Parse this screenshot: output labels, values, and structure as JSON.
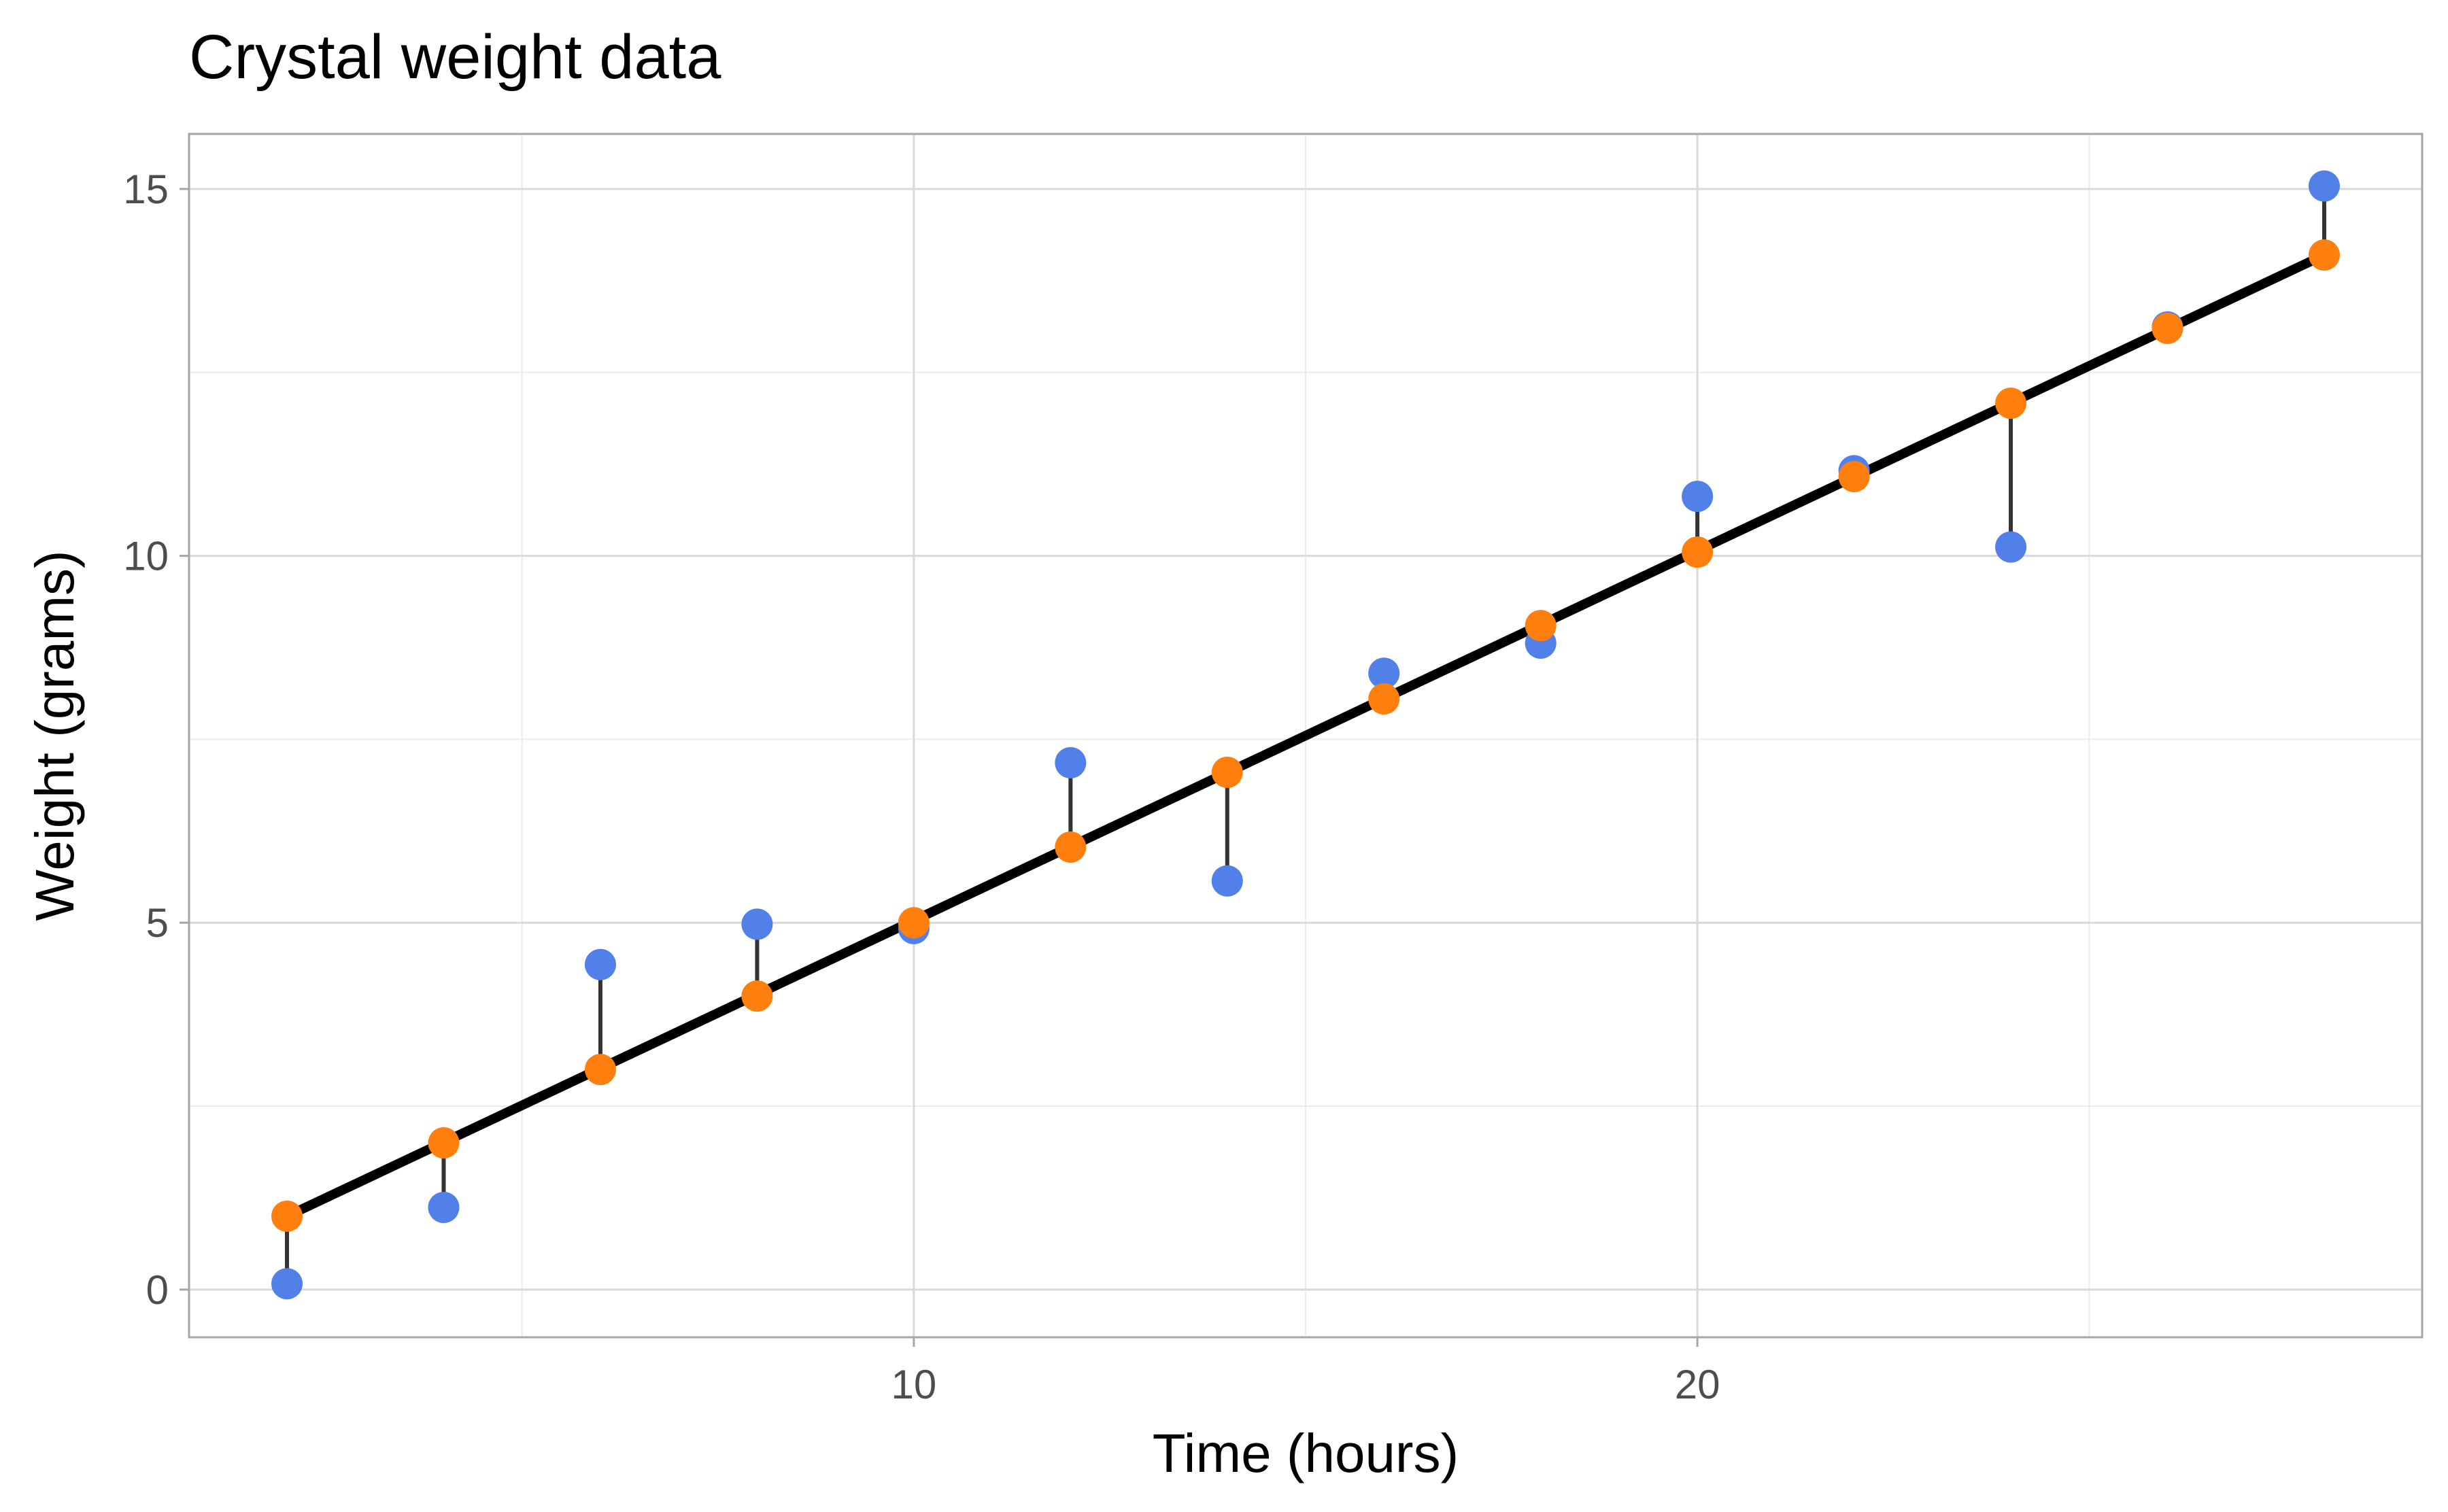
{
  "chart_data": {
    "type": "scatter",
    "title": "Crystal weight data",
    "xlabel": "Time (hours)",
    "ylabel": "Weight (grams)",
    "xlim": [
      0.75,
      29.25
    ],
    "ylim": [
      -0.65,
      15.75
    ],
    "x_ticks": [
      10,
      20
    ],
    "x_minor_ticks": [
      5,
      15,
      25
    ],
    "y_ticks": [
      0,
      5,
      10,
      15
    ],
    "y_minor_ticks": [
      2.5,
      7.5,
      12.5
    ],
    "grid": true,
    "legend": "none",
    "x": [
      2,
      4,
      6,
      8,
      10,
      12,
      14,
      16,
      18,
      20,
      22,
      24,
      26,
      28
    ],
    "series": [
      {
        "role": "observed",
        "color": "#5080e8",
        "values": [
          0.08,
          1.12,
          4.43,
          4.98,
          4.92,
          7.18,
          5.57,
          8.4,
          8.81,
          10.81,
          11.16,
          10.12,
          13.12,
          15.04
        ]
      },
      {
        "role": "fitted",
        "color": "#ff7f0e",
        "values": [
          1.0,
          2.0,
          3.0,
          4.0,
          5.0,
          6.03,
          7.05,
          8.05,
          9.05,
          10.05,
          11.08,
          12.08,
          13.1,
          14.1
        ]
      }
    ],
    "fit_line": {
      "color": "#000000",
      "x": [
        2,
        28
      ],
      "y": [
        1.0,
        14.1
      ]
    },
    "residual_color": "#333333"
  }
}
